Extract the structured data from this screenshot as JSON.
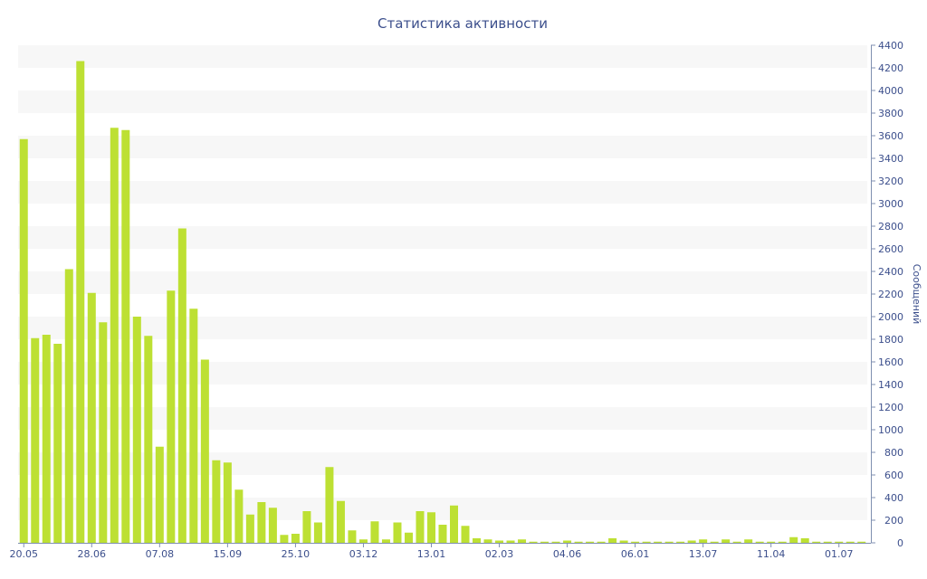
{
  "chart_data": {
    "type": "bar",
    "title": "Статистика активности",
    "ylabel": "Сообщений",
    "xlabel": "",
    "ylim": [
      0,
      4400
    ],
    "yticks": [
      0,
      200,
      400,
      600,
      800,
      1000,
      1200,
      1400,
      1600,
      1800,
      2000,
      2200,
      2400,
      2600,
      2800,
      3000,
      3200,
      3400,
      3600,
      3800,
      4000,
      4200,
      4400
    ],
    "y_axis_side": "right",
    "grid": "alternating horizontal bands",
    "legend": "none",
    "bar_color": "#bde033",
    "x_tick_labels": [
      {
        "label": "20.05",
        "index": 0
      },
      {
        "label": "28.06",
        "index": 6
      },
      {
        "label": "07.08",
        "index": 12
      },
      {
        "label": "15.09",
        "index": 18
      },
      {
        "label": "25.10",
        "index": 24
      },
      {
        "label": "03.12",
        "index": 30
      },
      {
        "label": "13.01",
        "index": 36
      },
      {
        "label": "02.03",
        "index": 42
      },
      {
        "label": "04.06",
        "index": 48
      },
      {
        "label": "06.01",
        "index": 54
      },
      {
        "label": "13.07",
        "index": 60
      },
      {
        "label": "11.04",
        "index": 66
      },
      {
        "label": "01.07",
        "index": 72
      }
    ],
    "values": [
      3570,
      1810,
      1840,
      1760,
      2420,
      4260,
      2210,
      1950,
      3670,
      3650,
      2000,
      1830,
      850,
      2230,
      2780,
      2070,
      1620,
      730,
      710,
      470,
      250,
      360,
      310,
      70,
      80,
      280,
      180,
      670,
      370,
      110,
      30,
      190,
      30,
      180,
      90,
      280,
      270,
      160,
      330,
      150,
      40,
      30,
      20,
      20,
      30,
      10,
      10,
      10,
      20,
      10,
      10,
      10,
      40,
      20,
      10,
      10,
      10,
      10,
      10,
      20,
      30,
      10,
      30,
      10,
      30,
      10,
      10,
      10,
      50,
      40,
      10,
      10,
      10,
      10,
      10
    ]
  }
}
